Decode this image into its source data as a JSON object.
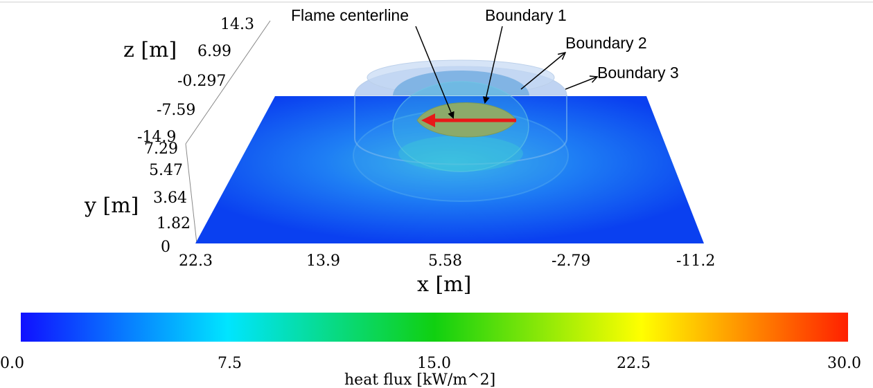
{
  "axes": {
    "z": {
      "label": "z [m]",
      "ticks": [
        "14.3",
        "6.99",
        "-0.297",
        "-7.59",
        "-14.9"
      ]
    },
    "y": {
      "label": "y [m]",
      "ticks": [
        "7.29",
        "5.47",
        "3.64",
        "1.82",
        "0"
      ]
    },
    "x": {
      "label": "x [m]",
      "ticks": [
        "22.3",
        "13.9",
        "5.58",
        "-2.79",
        "-11.2"
      ]
    }
  },
  "annotations": {
    "flame_centerline": "Flame centerline",
    "boundary_1": "Boundary 1",
    "boundary_2": "Boundary 2",
    "boundary_3": "Boundary 3"
  },
  "colorbar": {
    "label": "heat flux [kW/m^2]",
    "ticks": [
      "0.0",
      "7.5",
      "15.0",
      "22.5",
      "30.0"
    ],
    "range": [
      0,
      30
    ],
    "colors": [
      "#1010ff",
      "#00e5ff",
      "#10d010",
      "#ffff00",
      "#ff2000"
    ]
  },
  "colors": {
    "plane": "#0a40f0",
    "flame": "#8caa6a",
    "centerline_arrow": "#e81818"
  }
}
